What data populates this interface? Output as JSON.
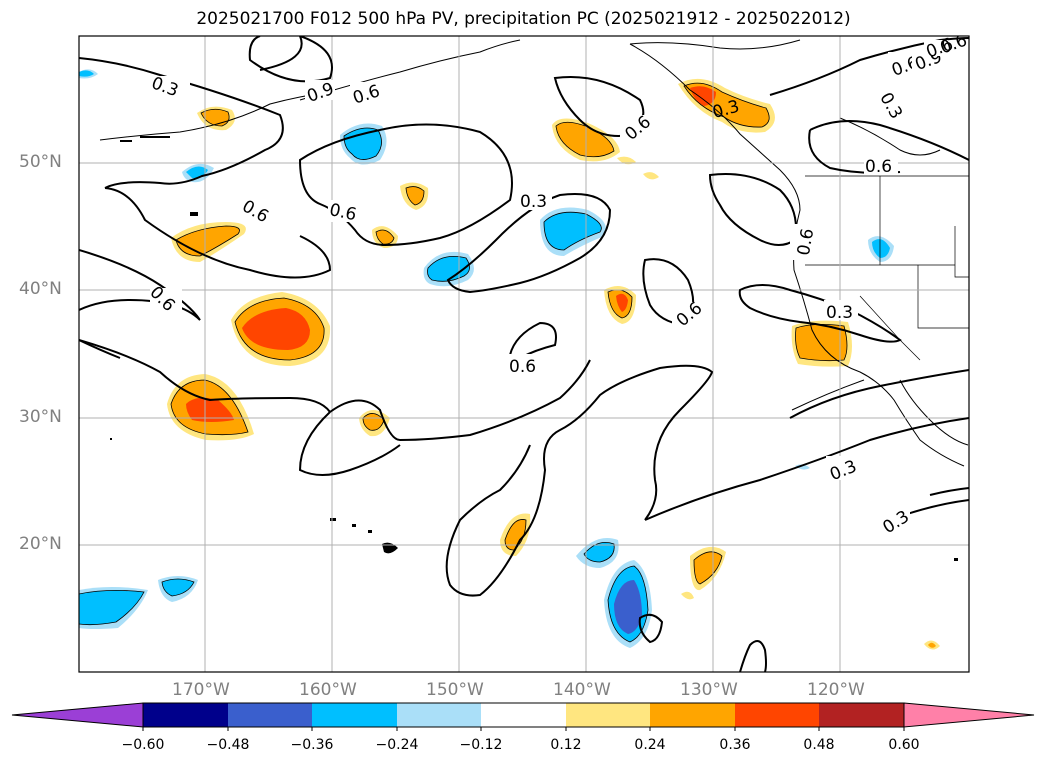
{
  "title": "2025021700 F012 500 hPa PV, precipitation PC (2025021912 - 2025022012)",
  "lat_labels": [
    "50°N",
    "40°N",
    "30°N",
    "20°N"
  ],
  "lon_labels": [
    "170°W",
    "160°W",
    "150°W",
    "140°W",
    "130°W",
    "120°W"
  ],
  "contour_labels": [
    "0.3",
    "0.6",
    "0.6",
    "0.9",
    "0.3",
    "0.6",
    "0.6",
    "0.6",
    "0.6",
    "0.6",
    "0.3",
    "0.6",
    "0.6",
    "0.9",
    "0.6",
    "0.3",
    "0.6",
    "0.3",
    "0.6",
    "0.3",
    "0.3",
    "0.3"
  ],
  "colorbar": {
    "tick_labels": [
      "−0.60",
      "−0.48",
      "−0.36",
      "−0.24",
      "−0.12",
      "0.12",
      "0.24",
      "0.36",
      "0.48",
      "0.60"
    ],
    "colors": [
      "#9b3fd6",
      "#00008b",
      "#3a5fcd",
      "#00bfff",
      "#aadff8",
      "#ffffff",
      "#ffe680",
      "#ffa500",
      "#ff4500",
      "#b22222",
      "#ff80a8"
    ]
  },
  "colors": {
    "contour": "#000000",
    "grid": "#b0b0b0",
    "tick_text": "#808080"
  }
}
